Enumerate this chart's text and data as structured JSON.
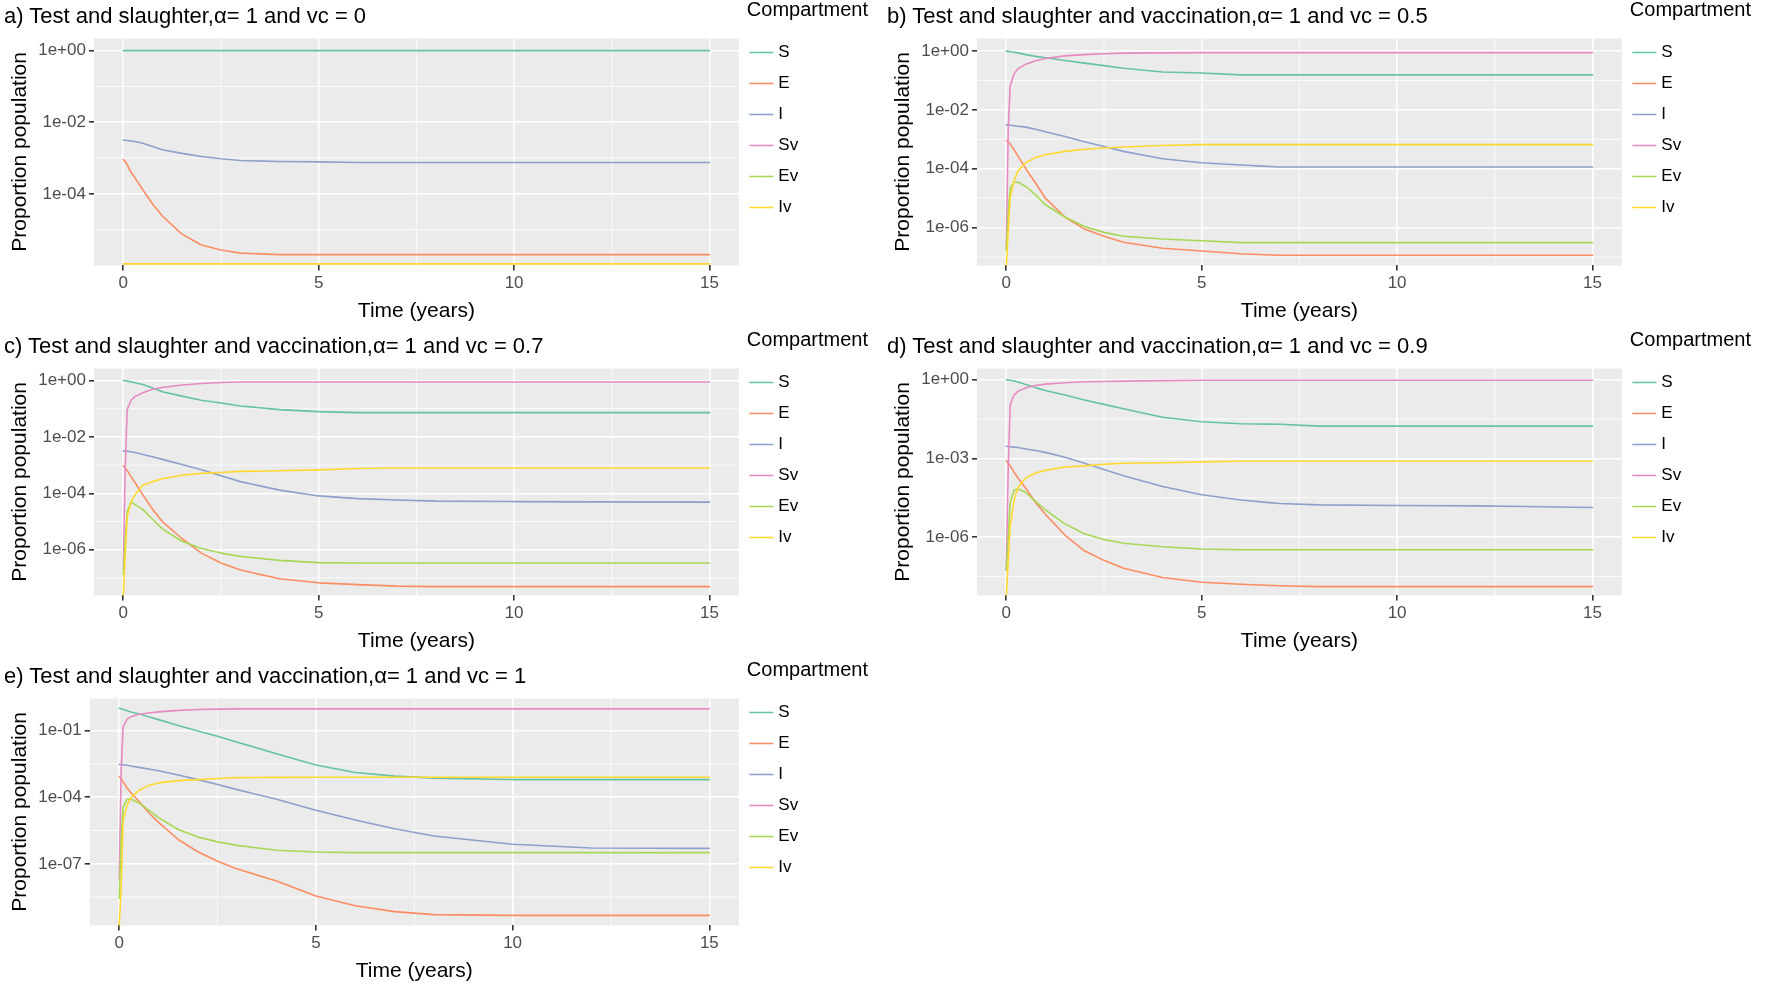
{
  "chart_data": [
    {
      "type": "line",
      "title": "a) Test and slaughter,α= 1 and vc = 0",
      "xlabel": "Time (years)",
      "ylabel": "Proportion population",
      "legend_title": "Compartment",
      "legend": "right",
      "grid": true,
      "log": "y",
      "x": [
        0,
        0.05,
        0.1,
        0.2,
        0.3,
        0.5,
        0.75,
        1,
        1.5,
        2,
        2.5,
        3,
        4,
        5,
        6,
        7,
        8,
        10,
        12,
        15
      ],
      "xlim": [
        -0.75,
        15.75
      ],
      "xticks": [
        0,
        5,
        10,
        15
      ],
      "ylim": [
        1e-06,
        2.2
      ],
      "yticks": [
        {
          "value": 1,
          "label": "1e+00"
        },
        {
          "value": 0.01,
          "label": "1e-02"
        },
        {
          "value": 0.0001,
          "label": "1e-04"
        }
      ],
      "series": [
        {
          "name": "S",
          "color": "#66c2a5",
          "values": [
            1,
            1,
            1,
            1,
            1,
            1,
            1,
            1,
            1,
            1,
            1,
            1,
            1,
            1,
            1,
            1,
            1,
            1,
            1,
            1
          ]
        },
        {
          "name": "E",
          "color": "#fc8d62",
          "values": [
            0.0009,
            0.0008,
            0.00065,
            0.0004,
            0.00028,
            0.00013,
            5.2e-05,
            2.4e-05,
            7.5e-06,
            3.7e-06,
            2.7e-06,
            2.2e-06,
            2e-06,
            2e-06,
            2e-06,
            2e-06,
            2e-06,
            2e-06,
            2e-06,
            2e-06
          ]
        },
        {
          "name": "I",
          "color": "#8da0cb",
          "values": [
            0.0032,
            0.00315,
            0.0031,
            0.003,
            0.0029,
            0.0026,
            0.0021,
            0.0017,
            0.00135,
            0.0011,
            0.00095,
            0.00085,
            0.0008,
            0.00078,
            0.00075,
            0.00075,
            0.00075,
            0.00075,
            0.00075,
            0.00075
          ]
        },
        {
          "name": "Sv",
          "color": "#e78ac3",
          "values": [
            null,
            null,
            null,
            null,
            null,
            null,
            null,
            null,
            null,
            null,
            null,
            null,
            null,
            null,
            null,
            null,
            null,
            null,
            null,
            null
          ]
        },
        {
          "name": "Ev",
          "color": "#a6d854",
          "values": [
            null,
            null,
            null,
            null,
            null,
            null,
            null,
            null,
            null,
            null,
            null,
            null,
            null,
            null,
            null,
            null,
            null,
            null,
            null,
            null
          ]
        },
        {
          "name": "Iv",
          "color": "#ffd92f",
          "values": [
            1.1e-06,
            1.1e-06,
            1.1e-06,
            1.1e-06,
            1.1e-06,
            1.1e-06,
            1.1e-06,
            1.1e-06,
            1.1e-06,
            1.1e-06,
            1.1e-06,
            1.1e-06,
            1.1e-06,
            1.1e-06,
            1.1e-06,
            1.1e-06,
            1.1e-06,
            1.1e-06,
            1.1e-06,
            1.1e-06
          ]
        }
      ]
    },
    {
      "type": "line",
      "title": "b) Test and slaughter and vaccination,α= 1 and vc = 0.5",
      "xlabel": "Time (years)",
      "ylabel": "Proportion population",
      "legend_title": "Compartment",
      "legend": "right",
      "grid": true,
      "log": "y",
      "x": [
        0,
        0.05,
        0.1,
        0.2,
        0.3,
        0.5,
        0.75,
        1,
        1.5,
        2,
        2.5,
        3,
        4,
        5,
        6,
        7,
        8,
        10,
        12,
        15
      ],
      "xlim": [
        -0.75,
        15.75
      ],
      "xticks": [
        0,
        5,
        10,
        15
      ],
      "ylim": [
        5.2e-08,
        2.7
      ],
      "yticks": [
        {
          "value": 1,
          "label": "1e+00"
        },
        {
          "value": 0.01,
          "label": "1e-02"
        },
        {
          "value": 0.0001,
          "label": "1e-04"
        },
        {
          "value": 1e-06,
          "label": "1e-06"
        }
      ],
      "series": [
        {
          "name": "S",
          "color": "#66c2a5",
          "values": [
            1,
            0.98,
            0.95,
            0.91,
            0.87,
            0.76,
            0.66,
            0.59,
            0.48,
            0.39,
            0.32,
            0.26,
            0.195,
            0.18,
            0.155,
            0.155,
            0.155,
            0.155,
            0.155,
            0.155
          ]
        },
        {
          "name": "E",
          "color": "#fc8d62",
          "values": [
            0.00089,
            0.00083,
            0.00069,
            0.00044,
            0.00027,
            0.0001,
            3.3e-05,
            1e-05,
            2.3e-06,
            8.9e-07,
            5.1e-07,
            3.2e-07,
            2e-07,
            1.6e-07,
            1.3e-07,
            1.15e-07,
            1.15e-07,
            1.15e-07,
            1.15e-07,
            1.15e-07
          ]
        },
        {
          "name": "I",
          "color": "#8da0cb",
          "values": [
            0.0031,
            0.00305,
            0.003,
            0.0029,
            0.0028,
            0.0026,
            0.0022,
            0.0018,
            0.00125,
            0.00083,
            0.00057,
            0.00039,
            0.00022,
            0.00016,
            0.000135,
            0.000115,
            0.000115,
            0.000115,
            0.000115,
            0.000115
          ]
        },
        {
          "name": "Sv",
          "color": "#e78ac3",
          "values": [
            2e-07,
            0.0021,
            0.065,
            0.17,
            0.25,
            0.36,
            0.47,
            0.56,
            0.69,
            0.76,
            0.81,
            0.85,
            0.87,
            0.89,
            0.89,
            0.89,
            0.89,
            0.89,
            0.89,
            0.89
          ]
        },
        {
          "name": "Ev",
          "color": "#a6d854",
          "values": [
            1.6e-07,
            3.4e-06,
            2.2e-05,
            3.5e-05,
            3.5e-05,
            2.5e-05,
            1.3e-05,
            6e-06,
            2.3e-06,
            1.1e-06,
            6.9e-07,
            5.1e-07,
            4.1e-07,
            3.6e-07,
            3.1e-07,
            3.1e-07,
            3.1e-07,
            3.1e-07,
            3.1e-07,
            3.1e-07
          ]
        },
        {
          "name": "Iv",
          "color": "#ffd92f",
          "values": [
            5.2e-08,
            7.4e-07,
            1.05e-05,
            4e-05,
            8.5e-05,
            0.00016,
            0.00024,
            0.0003,
            0.00039,
            0.00046,
            0.00051,
            0.00055,
            0.00062,
            0.00066,
            0.00066,
            0.00066,
            0.00066,
            0.00066,
            0.00066,
            0.00066
          ]
        }
      ]
    },
    {
      "type": "line",
      "title": "c) Test and slaughter and vaccination,α= 1 and vc = 0.7",
      "xlabel": "Time (years)",
      "ylabel": "Proportion population",
      "legend_title": "Compartment",
      "legend": "right",
      "grid": true,
      "log": "y",
      "x": [
        0,
        0.05,
        0.1,
        0.2,
        0.3,
        0.5,
        0.75,
        1,
        1.5,
        2,
        2.5,
        3,
        4,
        5,
        6,
        7,
        8,
        10,
        12,
        15
      ],
      "xlim": [
        -0.75,
        15.75
      ],
      "xticks": [
        0,
        5,
        10,
        15
      ],
      "ylim": [
        2.4e-08,
        2.7
      ],
      "yticks": [
        {
          "value": 1,
          "label": "1e+00"
        },
        {
          "value": 0.01,
          "label": "1e-02"
        },
        {
          "value": 0.0001,
          "label": "1e-04"
        },
        {
          "value": 1e-06,
          "label": "1e-06"
        }
      ],
      "series": [
        {
          "name": "S",
          "color": "#66c2a5",
          "values": [
            1,
            0.98,
            0.96,
            0.9,
            0.84,
            0.72,
            0.55,
            0.4,
            0.28,
            0.2,
            0.16,
            0.126,
            0.093,
            0.079,
            0.073,
            0.073,
            0.073,
            0.073,
            0.073,
            0.073
          ]
        },
        {
          "name": "E",
          "color": "#fc8d62",
          "values": [
            0.00095,
            0.00079,
            0.00065,
            0.00039,
            0.00024,
            8.9e-05,
            2.7e-05,
            1e-05,
            2.5e-06,
            7.6e-07,
            3.4e-07,
            1.9e-07,
            9.3e-08,
            6.7e-08,
            5.8e-08,
            5.1e-08,
            4.9e-08,
            4.9e-08,
            4.9e-08,
            4.9e-08
          ]
        },
        {
          "name": "I",
          "color": "#8da0cb",
          "values": [
            0.0032,
            0.00315,
            0.0031,
            0.003,
            0.0028,
            0.0024,
            0.002,
            0.0016,
            0.00105,
            0.00069,
            0.00042,
            0.00026,
            0.00013,
            8.1e-05,
            6.5e-05,
            5.8e-05,
            5.3e-05,
            5.1e-05,
            5e-05,
            4.9e-05
          ]
        },
        {
          "name": "Sv",
          "color": "#e78ac3",
          "values": [
            2e-07,
            0.00079,
            0.093,
            0.2,
            0.27,
            0.37,
            0.49,
            0.57,
            0.7,
            0.79,
            0.85,
            0.89,
            0.89,
            0.89,
            0.89,
            0.89,
            0.89,
            0.89,
            0.89,
            0.89
          ]
        },
        {
          "name": "Ev",
          "color": "#a6d854",
          "values": [
            1.3e-07,
            2e-06,
            2.2e-05,
            4.9e-05,
            4e-05,
            2.7e-05,
            1.2e-05,
            5.5e-06,
            2e-06,
            1.1e-06,
            7.6e-07,
            5.8e-07,
            4.2e-07,
            3.5e-07,
            3.4e-07,
            3.4e-07,
            3.4e-07,
            3.4e-07,
            3.4e-07,
            3.4e-07
          ]
        },
        {
          "name": "Iv",
          "color": "#ffd92f",
          "values": [
            2.4e-08,
            6.3e-07,
            1.5e-05,
            4.9e-05,
            8.9e-05,
            0.000195,
            0.00026,
            0.00033,
            0.00044,
            0.00051,
            0.00055,
            0.0006,
            0.00063,
            0.00068,
            0.00076,
            0.00079,
            0.00079,
            0.00079,
            0.00079,
            0.00079
          ]
        }
      ]
    },
    {
      "type": "line",
      "title": "d) Test and slaughter and vaccination,α= 1 and vc = 0.9",
      "xlabel": "Time (years)",
      "ylabel": "Proportion population",
      "legend_title": "Compartment",
      "legend": "right",
      "grid": true,
      "log": "y",
      "x": [
        0,
        0.05,
        0.1,
        0.2,
        0.3,
        0.5,
        0.75,
        1,
        1.5,
        2,
        2.5,
        3,
        4,
        5,
        6,
        7,
        8,
        10,
        12,
        15
      ],
      "xlim": [
        -0.75,
        15.75
      ],
      "xticks": [
        0,
        5,
        10,
        15
      ],
      "ylim": [
        6e-09,
        2.7
      ],
      "yticks": [
        {
          "value": 1,
          "label": "1e+00"
        },
        {
          "value": 0.001,
          "label": "1e-03"
        },
        {
          "value": 1e-06,
          "label": "1e-06"
        }
      ],
      "series": [
        {
          "name": "S",
          "color": "#66c2a5",
          "values": [
            1,
            0.98,
            0.95,
            0.89,
            0.82,
            0.66,
            0.5,
            0.39,
            0.26,
            0.17,
            0.115,
            0.078,
            0.037,
            0.025,
            0.021,
            0.02,
            0.017,
            0.017,
            0.017,
            0.017
          ]
        },
        {
          "name": "E",
          "color": "#fc8d62",
          "values": [
            0.00081,
            0.00065,
            0.00052,
            0.0003,
            0.00018,
            7.1e-05,
            2.1e-05,
            7.4e-06,
            1.2e-06,
            3e-07,
            1.3e-07,
            6.5e-08,
            2.9e-08,
            1.9e-08,
            1.6e-08,
            1.4e-08,
            1.3e-08,
            1.3e-08,
            1.3e-08,
            1.3e-08
          ]
        },
        {
          "name": "I",
          "color": "#8da0cb",
          "values": [
            0.0029,
            0.00285,
            0.0028,
            0.0027,
            0.0026,
            0.0023,
            0.002,
            0.0017,
            0.0011,
            0.00065,
            0.00038,
            0.00022,
            8.5e-05,
            4.1e-05,
            2.6e-05,
            1.9e-05,
            1.7e-05,
            1.6e-05,
            1.55e-05,
            1.35e-05
          ]
        },
        {
          "name": "Sv",
          "color": "#e78ac3",
          "values": [
            5.5e-08,
            0.00043,
            0.11,
            0.26,
            0.36,
            0.49,
            0.6,
            0.68,
            0.77,
            0.84,
            0.86,
            0.88,
            0.92,
            0.96,
            0.96,
            0.96,
            0.96,
            0.96,
            0.96,
            0.96
          ]
        },
        {
          "name": "Ev",
          "color": "#a6d854",
          "values": [
            5.5e-08,
            1.1e-06,
            2.1e-05,
            6.3e-05,
            6.8e-05,
            5e-05,
            2.3e-05,
            1.1e-05,
            3.2e-06,
            1.35e-06,
            8.1e-07,
            5.8e-07,
            4.3e-07,
            3.5e-07,
            3.3e-07,
            3.3e-07,
            3.3e-07,
            3.3e-07,
            3.3e-07,
            3.3e-07
          ]
        },
        {
          "name": "Iv",
          "color": "#ffd92f",
          "values": [
            6e-09,
            1.3e-07,
            2.6e-06,
            2.7e-05,
            7.8e-05,
            0.00018,
            0.00028,
            0.00035,
            0.00047,
            0.00052,
            0.0006,
            0.00065,
            0.00068,
            0.00074,
            0.00078,
            0.00078,
            0.00078,
            0.00078,
            0.00078,
            0.00078
          ]
        }
      ]
    },
    {
      "type": "line",
      "title": "e) Test and slaughter and vaccination,α= 1 and vc = 1",
      "xlabel": "Time (years)",
      "ylabel": "Proportion population",
      "legend_title": "Compartment",
      "legend": "right",
      "grid": true,
      "log": "y",
      "x": [
        0,
        0.05,
        0.1,
        0.2,
        0.3,
        0.5,
        0.75,
        1,
        1.5,
        2,
        2.5,
        3,
        4,
        5,
        6,
        7,
        8,
        10,
        12,
        15
      ],
      "xlim": [
        -0.75,
        15.75
      ],
      "xticks": [
        0,
        5,
        10,
        15
      ],
      "ylim": [
        1.7e-10,
        2.8
      ],
      "yticks": [
        {
          "value": 0.1,
          "label": "1e-01"
        },
        {
          "value": 0.0001,
          "label": "1e-04"
        },
        {
          "value": 1e-07,
          "label": "1e-07"
        }
      ],
      "series": [
        {
          "name": "S",
          "color": "#66c2a5",
          "values": [
            1,
            0.95,
            0.89,
            0.78,
            0.69,
            0.55,
            0.42,
            0.31,
            0.17,
            0.095,
            0.055,
            0.03,
            0.0091,
            0.0028,
            0.0013,
            0.00089,
            0.00072,
            0.00062,
            0.00062,
            0.00062
          ]
        },
        {
          "name": "E",
          "color": "#fc8d62",
          "values": [
            0.00083,
            0.00068,
            0.0005,
            0.00026,
            0.00016,
            6.6e-05,
            2e-05,
            7.4e-06,
            1.25e-06,
            3.5e-07,
            1.3e-07,
            5.9e-08,
            1.7e-08,
            3.6e-09,
            1.3e-09,
            7.1e-10,
            5.2e-10,
            4.8e-10,
            4.8e-10,
            4.8e-10
          ]
        },
        {
          "name": "I",
          "color": "#8da0cb",
          "values": [
            0.003,
            0.00295,
            0.0029,
            0.00275,
            0.00255,
            0.0022,
            0.00185,
            0.00155,
            0.001,
            0.00062,
            0.00037,
            0.00022,
            8.1e-05,
            2.6e-05,
            9.5e-06,
            3.8e-06,
            1.8e-06,
            7.6e-07,
            5.2e-07,
            5e-07
          ]
        },
        {
          "name": "Sv",
          "color": "#e78ac3",
          "values": [
            2.1e-08,
            0.00155,
            0.15,
            0.32,
            0.42,
            0.54,
            0.62,
            0.69,
            0.81,
            0.89,
            0.92,
            0.95,
            0.95,
            0.95,
            0.95,
            0.95,
            0.95,
            0.95,
            0.95,
            0.95
          ]
        },
        {
          "name": "Ev",
          "color": "#a6d854",
          "values": [
            2.8e-09,
            1.25e-06,
            3.4e-05,
            8.1e-05,
            8.1e-05,
            5.6e-05,
            2.6e-05,
            1.2e-05,
            3.5e-06,
            1.6e-06,
            9.8e-07,
            6.8e-07,
            4.1e-07,
            3.4e-07,
            3.2e-07,
            3.2e-07,
            3.2e-07,
            3.2e-07,
            3.2e-07,
            3.2e-07
          ]
        },
        {
          "name": "Iv",
          "color": "#ffd92f",
          "values": [
            1.7e-10,
            7.8e-09,
            9.5e-06,
            4.4e-05,
            9.5e-05,
            0.0002,
            0.00034,
            0.00044,
            0.00056,
            0.00062,
            0.00069,
            0.00076,
            0.00078,
            0.00079,
            0.00079,
            0.00079,
            0.00079,
            0.00079,
            0.00079,
            0.00079
          ]
        }
      ]
    }
  ]
}
